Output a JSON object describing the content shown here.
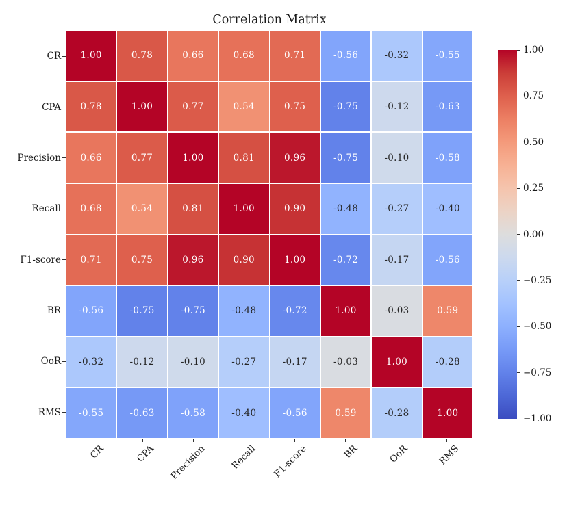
{
  "title": "Correlation Matrix",
  "chart_data": {
    "type": "heatmap",
    "title": "Correlation Matrix",
    "categories": [
      "CR",
      "CPA",
      "Precision",
      "Recall",
      "F1-score",
      "BR",
      "OoR",
      "RMS"
    ],
    "matrix": [
      [
        1.0,
        0.78,
        0.66,
        0.68,
        0.71,
        -0.56,
        -0.32,
        -0.55
      ],
      [
        0.78,
        1.0,
        0.77,
        0.54,
        0.75,
        -0.75,
        -0.12,
        -0.63
      ],
      [
        0.66,
        0.77,
        1.0,
        0.81,
        0.96,
        -0.75,
        -0.1,
        -0.58
      ],
      [
        0.68,
        0.54,
        0.81,
        1.0,
        0.9,
        -0.48,
        -0.27,
        -0.4
      ],
      [
        0.71,
        0.75,
        0.96,
        0.9,
        1.0,
        -0.72,
        -0.17,
        -0.56
      ],
      [
        -0.56,
        -0.75,
        -0.75,
        -0.48,
        -0.72,
        1.0,
        -0.03,
        0.59
      ],
      [
        -0.32,
        -0.12,
        -0.1,
        -0.27,
        -0.17,
        -0.03,
        1.0,
        -0.28
      ],
      [
        -0.55,
        -0.63,
        -0.58,
        -0.4,
        -0.56,
        0.59,
        -0.28,
        1.0
      ]
    ],
    "vmin": -1,
    "vmax": 1,
    "colormap": "coolwarm",
    "colormap_colors": {
      "negative_end": "#3b4cc0",
      "midpoint": "#dddddd",
      "positive_end": "#b40426"
    },
    "cell_value_decimals": 2,
    "annotation_text_colors": {
      "light": "#ffffff",
      "dark": "#262626"
    },
    "grid_line_color": "#ffffff",
    "x_tick_rotation_deg": 45,
    "legend_position": "right",
    "colorbar": {
      "tick_labels": [
        "1.00",
        "0.75",
        "0.50",
        "0.25",
        "0.00",
        "−0.25",
        "−0.50",
        "−0.75",
        "−1.00"
      ]
    }
  }
}
